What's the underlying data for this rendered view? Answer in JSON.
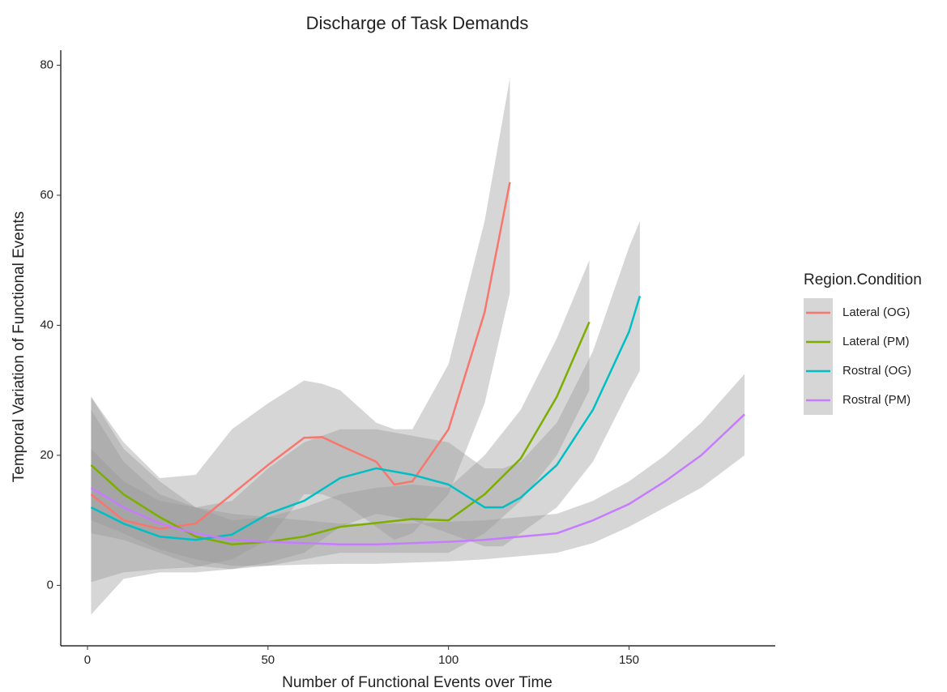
{
  "chart_data": {
    "type": "line",
    "title": "Discharge of Task Demands",
    "x_label": "Number of Functional Events over Time",
    "y_label": "Temporal Variation of Functional Events",
    "legend_title": "Region.Condition",
    "legend": "right",
    "band_color": "#999999",
    "xlim": [
      -7.4,
      190.5
    ],
    "ylim": [
      -9.3,
      82.3
    ],
    "xticks": [
      0,
      50,
      100,
      150
    ],
    "yticks": [
      0,
      20,
      40,
      60,
      80
    ],
    "grid": false,
    "series": [
      {
        "name": "Lateral (OG)",
        "color": "#F8766D",
        "x": [
          1,
          10,
          20,
          30,
          40,
          50,
          60,
          65,
          70,
          80,
          85,
          90,
          100,
          110,
          117
        ],
        "values": [
          14,
          10,
          8.7,
          9.5,
          14,
          18.5,
          22.7,
          22.8,
          21.5,
          19,
          15.5,
          16,
          24,
          42,
          62
        ],
        "lower": [
          0.5,
          2,
          2.5,
          2.8,
          4,
          7,
          14,
          14,
          13,
          9,
          7,
          8,
          14,
          28,
          45
        ],
        "upper": [
          29,
          22,
          16.5,
          17,
          24,
          28,
          31.5,
          31,
          30,
          25,
          24,
          24,
          34,
          56,
          78
        ]
      },
      {
        "name": "Lateral (PM)",
        "color": "#7CAE00",
        "x": [
          1,
          10,
          20,
          30,
          40,
          50,
          60,
          70,
          80,
          90,
          100,
          110,
          120,
          130,
          139
        ],
        "values": [
          18.5,
          14,
          10.5,
          7.5,
          6.3,
          6.7,
          7.5,
          9,
          9.6,
          10.2,
          10,
          14,
          19.5,
          29,
          40.5
        ],
        "lower": [
          8,
          7,
          5,
          3,
          2.5,
          3,
          4,
          5,
          5,
          5,
          5,
          8,
          13,
          20,
          30
        ],
        "upper": [
          29,
          21,
          16,
          12,
          10,
          10.5,
          12,
          14,
          15,
          15.5,
          15,
          20,
          27,
          38,
          50
        ]
      },
      {
        "name": "Rostral (OG)",
        "color": "#00BFC4",
        "x": [
          1,
          10,
          20,
          30,
          40,
          50,
          60,
          70,
          80,
          90,
          100,
          110,
          115,
          120,
          130,
          140,
          150,
          153
        ],
        "values": [
          12,
          9.5,
          7.5,
          7,
          7.8,
          11,
          13,
          16.5,
          18,
          17,
          15.5,
          12,
          12,
          13.5,
          18.5,
          27,
          39,
          44.5
        ],
        "lower": [
          -4.5,
          1,
          2,
          2,
          2.5,
          3.5,
          5,
          9,
          11,
          10,
          8,
          6,
          6,
          8,
          12,
          19,
          30,
          33
        ],
        "upper": [
          27,
          19,
          14,
          12,
          13,
          18,
          22,
          24,
          24,
          23,
          22,
          18,
          18,
          19,
          25,
          36,
          52,
          56
        ]
      },
      {
        "name": "Rostral (PM)",
        "color": "#C77CFF",
        "x": [
          1,
          10,
          20,
          30,
          40,
          50,
          60,
          70,
          80,
          90,
          100,
          110,
          120,
          130,
          140,
          150,
          160,
          170,
          182
        ],
        "values": [
          15,
          12,
          9.5,
          8,
          7,
          6.7,
          6.5,
          6.3,
          6.3,
          6.5,
          6.7,
          7,
          7.5,
          8,
          10,
          12.5,
          16,
          20,
          26.3
        ],
        "lower": [
          10,
          8,
          5.5,
          4,
          3,
          3,
          3.2,
          3.3,
          3.3,
          3.5,
          3.7,
          4,
          4.5,
          5,
          6.5,
          9,
          12,
          15,
          20
        ],
        "upper": [
          21,
          16,
          13,
          12,
          11,
          10.5,
          10,
          9.5,
          9.5,
          9.5,
          9.8,
          10,
          10.5,
          11,
          13,
          16,
          20,
          25,
          32.5
        ]
      }
    ]
  }
}
